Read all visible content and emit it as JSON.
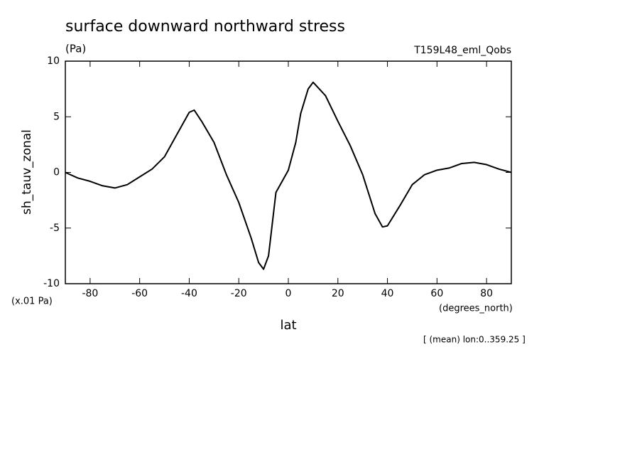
{
  "chart_data": {
    "type": "line",
    "title": "surface downward northward stress",
    "subtitle": "(Pa)",
    "annotation_right": "T159L48_eml_Qobs",
    "y_label": "sh_tauv_zonal",
    "y_units": "(x.01 Pa)",
    "x_units": "(degrees_north)",
    "x_label": "lat",
    "footnote": "[ (mean) lon:0..359.25 ]",
    "x": [
      -90,
      -85,
      -80,
      -75,
      -70,
      -65,
      -60,
      -55,
      -50,
      -45,
      -40,
      -38,
      -35,
      -30,
      -25,
      -20,
      -15,
      -12,
      -10,
      -8,
      -5,
      0,
      3,
      5,
      8,
      10,
      15,
      20,
      25,
      30,
      35,
      38,
      40,
      45,
      50,
      55,
      60,
      65,
      70,
      75,
      80,
      85,
      90
    ],
    "series": [
      {
        "name": "sh_tauv_zonal",
        "color": "#000000",
        "values": [
          0,
          -0.5,
          -0.8,
          -1.2,
          -1.4,
          -1.1,
          -0.4,
          0.3,
          1.4,
          3.4,
          5.4,
          5.6,
          4.6,
          2.7,
          -0.2,
          -2.7,
          -5.9,
          -8.1,
          -8.7,
          -7.5,
          -1.8,
          0.2,
          2.7,
          5.3,
          7.5,
          8.1,
          6.9,
          4.6,
          2.4,
          -0.2,
          -3.7,
          -4.9,
          -4.8,
          -3.0,
          -1.1,
          -0.2,
          0.2,
          0.4,
          0.8,
          0.9,
          0.7,
          0.3,
          0
        ]
      }
    ],
    "xlim": [
      -90,
      90
    ],
    "xticks": [
      -80,
      -60,
      -40,
      -20,
      0,
      20,
      40,
      60,
      80
    ],
    "ylim": [
      -10,
      10
    ],
    "yticks": [
      -10,
      -5,
      0,
      5,
      10
    ]
  }
}
